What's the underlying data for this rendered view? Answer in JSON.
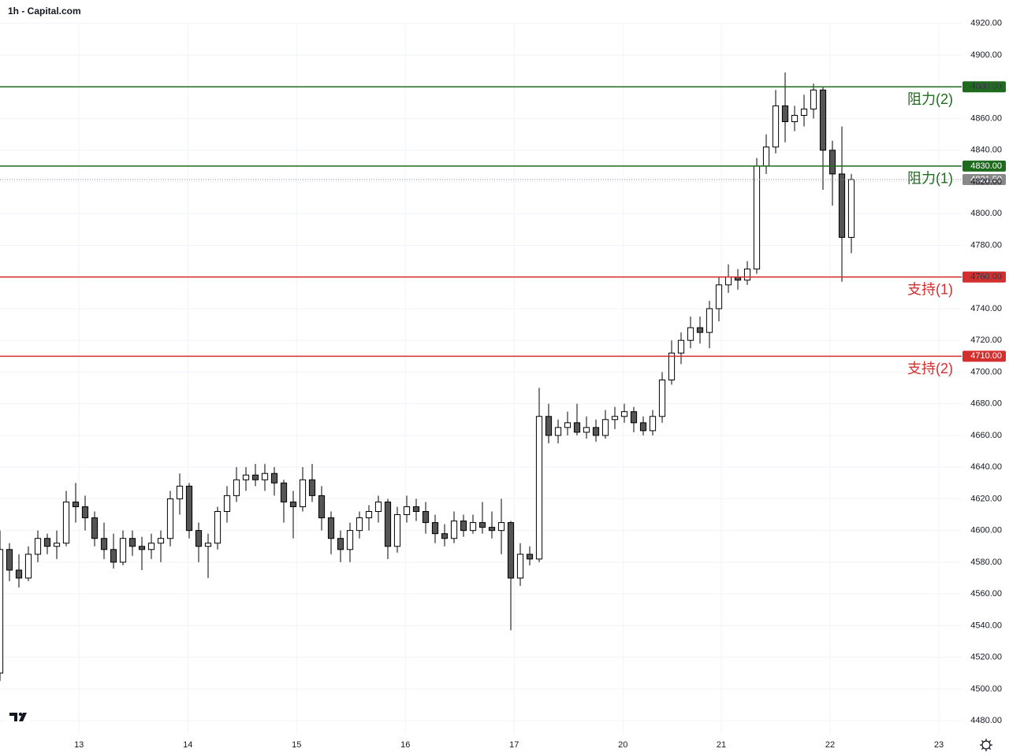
{
  "chart_data": {
    "type": "candlestick",
    "title": "1h - Capital.com",
    "up_color": "#ffffff",
    "down_color": "#555555",
    "wick_color": "#000000",
    "grid": true,
    "ylim": [
      4471.6,
      4934.8
    ],
    "yticks": [
      {
        "value": 4480,
        "label": "4480.00"
      },
      {
        "value": 4500,
        "label": "4500.00"
      },
      {
        "value": 4520,
        "label": "4520.00"
      },
      {
        "value": 4540,
        "label": "4540.00"
      },
      {
        "value": 4560,
        "label": "4560.00"
      },
      {
        "value": 4580,
        "label": "4580.00"
      },
      {
        "value": 4600,
        "label": "4600.00"
      },
      {
        "value": 4620,
        "label": "4620.00"
      },
      {
        "value": 4640,
        "label": "4640.00"
      },
      {
        "value": 4660,
        "label": "4660.00"
      },
      {
        "value": 4680,
        "label": "4680.00"
      },
      {
        "value": 4700,
        "label": "4700.00"
      },
      {
        "value": 4720,
        "label": "4720.00"
      },
      {
        "value": 4740,
        "label": "4740.00"
      },
      {
        "value": 4760,
        "label": "4760.00"
      },
      {
        "value": 4780,
        "label": "4780.00"
      },
      {
        "value": 4800,
        "label": "4800.00"
      },
      {
        "value": 4820,
        "label": "4820.00"
      },
      {
        "value": 4840,
        "label": "4840.00"
      },
      {
        "value": 4860,
        "label": "4860.00"
      },
      {
        "value": 4880,
        "label": "4880.00"
      },
      {
        "value": 4900,
        "label": "4900.00"
      },
      {
        "value": 4920,
        "label": "4920.00"
      }
    ],
    "xlim": [
      0,
      203.33
    ],
    "xticks": [
      {
        "value": 16.7,
        "label": "13"
      },
      {
        "value": 39.7,
        "label": "14"
      },
      {
        "value": 62.7,
        "label": "15"
      },
      {
        "value": 85.7,
        "label": "16"
      },
      {
        "value": 108.7,
        "label": "17"
      },
      {
        "value": 131.7,
        "label": "20"
      },
      {
        "value": 152.5,
        "label": "21"
      },
      {
        "value": 175.5,
        "label": "22"
      },
      {
        "value": 198.5,
        "label": "23"
      }
    ],
    "levels": [
      {
        "value": 4880,
        "label": "4880.00",
        "name": "阻力(2)",
        "color": "#1e6b1e"
      },
      {
        "value": 4830,
        "label": "4830.00",
        "name": "阻力(1)",
        "color": "#1e6b1e"
      },
      {
        "value": 4760,
        "label": "4760.00",
        "name": "支持(1)",
        "color": "#d32f2f"
      },
      {
        "value": 4710,
        "label": "4710.00",
        "name": "支持(2)",
        "color": "#d32f2f"
      }
    ],
    "last_price": {
      "value": 4821.5,
      "label": "4821.50",
      "color": "#888888"
    },
    "x": [
      0,
      2,
      4,
      6,
      8,
      10,
      12,
      14,
      16,
      18,
      20,
      22,
      24,
      26,
      28,
      30,
      32,
      34,
      36,
      38,
      40,
      42,
      44,
      46,
      48,
      50,
      52,
      54,
      56,
      58,
      60,
      62,
      64,
      66,
      68,
      70,
      72,
      74,
      76,
      78,
      80,
      82,
      84,
      86,
      88,
      90,
      92,
      94,
      96,
      98,
      100,
      102,
      104,
      106,
      108,
      110,
      112,
      114,
      116,
      118,
      120,
      122,
      124,
      126,
      128,
      130,
      132,
      134,
      136,
      138,
      140,
      142,
      144,
      146,
      148,
      150,
      152,
      154,
      156,
      158,
      160,
      162,
      164,
      166,
      168,
      170,
      172,
      174,
      176,
      178,
      180
    ],
    "open": [
      4510,
      4588,
      4575,
      4570,
      4585,
      4595,
      4590,
      4592,
      4618,
      4615,
      4608,
      4595,
      4588,
      4580,
      4595,
      4590,
      4588,
      4592,
      4595,
      4620,
      4628,
      4600,
      4590,
      4592,
      4612,
      4622,
      4632,
      4635,
      4632,
      4636,
      4630,
      4618,
      4615,
      4632,
      4622,
      4608,
      4595,
      4588,
      4600,
      4608,
      4612,
      4618,
      4590,
      4610,
      4615,
      4612,
      4605,
      4598,
      4595,
      4606,
      4600,
      4605,
      4602,
      4600,
      4605,
      4570,
      4585,
      4582,
      4672,
      4660,
      4665,
      4668,
      4662,
      4665,
      4660,
      4670,
      4672,
      4675,
      4668,
      4663,
      4672,
      4695,
      4712,
      4720,
      4728,
      4725,
      4740,
      4755,
      4760,
      4758,
      4765,
      4830,
      4842,
      4868,
      4858,
      4862,
      4866,
      4878,
      4840,
      4825,
      4785
    ],
    "high": [
      4600,
      4592,
      4585,
      4590,
      4600,
      4598,
      4600,
      4625,
      4630,
      4622,
      4612,
      4605,
      4598,
      4600,
      4600,
      4596,
      4598,
      4600,
      4625,
      4636,
      4630,
      4605,
      4598,
      4615,
      4628,
      4640,
      4640,
      4642,
      4642,
      4640,
      4632,
      4625,
      4640,
      4642,
      4628,
      4612,
      4600,
      4605,
      4612,
      4616,
      4622,
      4620,
      4615,
      4622,
      4620,
      4618,
      4610,
      4604,
      4612,
      4610,
      4610,
      4618,
      4612,
      4620,
      4606,
      4592,
      4590,
      4690,
      4680,
      4670,
      4675,
      4680,
      4672,
      4670,
      4676,
      4678,
      4680,
      4678,
      4672,
      4676,
      4700,
      4720,
      4725,
      4735,
      4735,
      4745,
      4760,
      4768,
      4765,
      4770,
      4835,
      4850,
      4878,
      4889,
      4868,
      4875,
      4882,
      4880,
      4846,
      4855,
      4825
    ],
    "low": [
      4505,
      4568,
      4564,
      4568,
      4580,
      4585,
      4582,
      4590,
      4605,
      4600,
      4590,
      4582,
      4576,
      4578,
      4584,
      4575,
      4582,
      4580,
      4590,
      4610,
      4595,
      4580,
      4570,
      4588,
      4605,
      4618,
      4625,
      4628,
      4625,
      4622,
      4605,
      4595,
      4612,
      4618,
      4600,
      4585,
      4580,
      4580,
      4595,
      4600,
      4605,
      4582,
      4586,
      4605,
      4606,
      4598,
      4592,
      4590,
      4592,
      4596,
      4598,
      4598,
      4595,
      4585,
      4537,
      4565,
      4578,
      4580,
      4655,
      4655,
      4660,
      4660,
      4658,
      4656,
      4658,
      4664,
      4668,
      4662,
      4660,
      4660,
      4668,
      4692,
      4705,
      4715,
      4718,
      4715,
      4732,
      4750,
      4752,
      4755,
      4762,
      4825,
      4838,
      4845,
      4852,
      4855,
      4860,
      4815,
      4805,
      4757,
      4775
    ],
    "close": [
      4588,
      4575,
      4570,
      4585,
      4595,
      4590,
      4592,
      4618,
      4615,
      4608,
      4595,
      4588,
      4580,
      4595,
      4590,
      4588,
      4592,
      4595,
      4620,
      4628,
      4600,
      4590,
      4592,
      4612,
      4622,
      4632,
      4635,
      4632,
      4636,
      4630,
      4618,
      4615,
      4632,
      4622,
      4608,
      4595,
      4588,
      4600,
      4608,
      4612,
      4618,
      4590,
      4610,
      4615,
      4612,
      4605,
      4598,
      4595,
      4606,
      4600,
      4605,
      4602,
      4600,
      4605,
      4570,
      4585,
      4582,
      4672,
      4660,
      4665,
      4668,
      4662,
      4665,
      4660,
      4670,
      4672,
      4675,
      4668,
      4663,
      4672,
      4695,
      4712,
      4720,
      4728,
      4725,
      4740,
      4755,
      4760,
      4758,
      4765,
      4830,
      4842,
      4868,
      4858,
      4862,
      4866,
      4878,
      4840,
      4825,
      4785,
      4821.5
    ]
  }
}
